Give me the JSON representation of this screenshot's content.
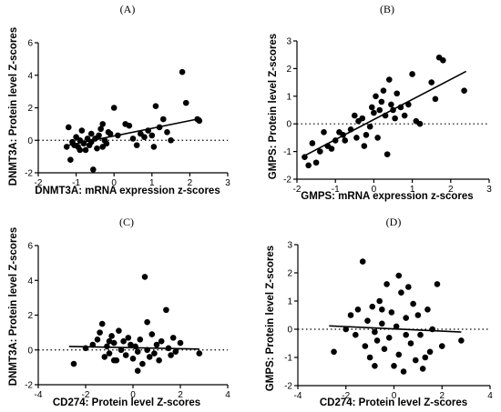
{
  "chart_data": [
    {
      "panel": "(A)",
      "type": "scatter",
      "xlabel": "DNMT3A: mRNA expression z-scores",
      "ylabel": "DNMT3A: Protein level Z-scores",
      "xlim": [
        -2,
        3
      ],
      "ylim": [
        -2,
        6
      ],
      "xticks": [
        -2,
        -1,
        0,
        1,
        2,
        3
      ],
      "yticks": [
        -2,
        0,
        2,
        4,
        6
      ],
      "grid": false,
      "reference_line_y": 0,
      "trend_line": [
        [
          -1.2,
          -0.3
        ],
        [
          2.3,
          1.35
        ]
      ],
      "points": [
        [
          -1.2,
          0.8
        ],
        [
          -1.15,
          -1.2
        ],
        [
          -1.1,
          -0.1
        ],
        [
          -1.05,
          -0.3
        ],
        [
          -1.0,
          0.2
        ],
        [
          -0.95,
          -0.4
        ],
        [
          -0.9,
          0.0
        ],
        [
          -0.85,
          0.6
        ],
        [
          -0.8,
          -0.2
        ],
        [
          -0.75,
          -0.6
        ],
        [
          -0.7,
          0.1
        ],
        [
          -0.65,
          -0.3
        ],
        [
          -0.6,
          0.4
        ],
        [
          -0.55,
          -1.8
        ],
        [
          -0.5,
          0.1
        ],
        [
          -0.45,
          -0.5
        ],
        [
          -0.4,
          0.3
        ],
        [
          -0.35,
          0.7
        ],
        [
          -0.3,
          1.0
        ],
        [
          -0.25,
          0.0
        ],
        [
          -0.2,
          -0.2
        ],
        [
          -0.15,
          0.5
        ],
        [
          -0.1,
          0.4
        ],
        [
          0.0,
          2.0
        ],
        [
          0.1,
          0.3
        ],
        [
          0.3,
          1.0
        ],
        [
          0.4,
          0.9
        ],
        [
          0.5,
          0.1
        ],
        [
          0.6,
          -0.3
        ],
        [
          0.7,
          0.4
        ],
        [
          0.8,
          0.2
        ],
        [
          0.9,
          0.6
        ],
        [
          1.0,
          0.3
        ],
        [
          1.05,
          -0.4
        ],
        [
          1.1,
          2.1
        ],
        [
          1.2,
          0.8
        ],
        [
          1.3,
          1.3
        ],
        [
          1.4,
          0.5
        ],
        [
          1.5,
          0.0
        ],
        [
          1.8,
          4.2
        ],
        [
          1.9,
          2.3
        ],
        [
          2.2,
          1.3
        ],
        [
          2.25,
          1.2
        ],
        [
          -1.25,
          -0.4
        ],
        [
          -0.9,
          -0.6
        ],
        [
          -0.6,
          -0.1
        ],
        [
          -0.3,
          -0.4
        ]
      ]
    },
    {
      "panel": "(B)",
      "type": "scatter",
      "xlabel": "GMPS: mRNA expression z-scores",
      "ylabel": "GMPS: Protein level Z-scores",
      "xlim": [
        -2,
        3
      ],
      "ylim": [
        -2,
        3
      ],
      "xticks": [
        -2,
        -1,
        0,
        1,
        2,
        3
      ],
      "yticks": [
        -2,
        -1,
        0,
        1,
        2,
        3
      ],
      "grid": false,
      "reference_line_y": 0,
      "trend_line": [
        [
          -1.8,
          -1.15
        ],
        [
          2.4,
          1.9
        ]
      ],
      "points": [
        [
          -1.8,
          -1.2
        ],
        [
          -1.7,
          -1.5
        ],
        [
          -1.6,
          -0.7
        ],
        [
          -1.5,
          -1.4
        ],
        [
          -1.4,
          -1.0
        ],
        [
          -1.2,
          -0.8
        ],
        [
          -1.1,
          -0.9
        ],
        [
          -1.0,
          -0.6
        ],
        [
          -0.9,
          -0.3
        ],
        [
          -0.8,
          -0.4
        ],
        [
          -0.75,
          -0.6
        ],
        [
          -0.6,
          -0.2
        ],
        [
          -0.5,
          0.3
        ],
        [
          -0.45,
          -0.5
        ],
        [
          -0.4,
          0.1
        ],
        [
          -0.3,
          0.2
        ],
        [
          -0.2,
          -0.4
        ],
        [
          -0.1,
          -0.1
        ],
        [
          -0.05,
          0.6
        ],
        [
          0.0,
          0.4
        ],
        [
          0.05,
          1.0
        ],
        [
          0.1,
          -0.5
        ],
        [
          0.15,
          0.5
        ],
        [
          0.2,
          0.8
        ],
        [
          0.25,
          1.2
        ],
        [
          0.3,
          0.3
        ],
        [
          0.35,
          -1.1
        ],
        [
          0.4,
          1.6
        ],
        [
          0.45,
          0.7
        ],
        [
          0.5,
          0.5
        ],
        [
          0.55,
          0.2
        ],
        [
          0.6,
          1.1
        ],
        [
          0.7,
          0.6
        ],
        [
          0.8,
          0.3
        ],
        [
          0.9,
          0.7
        ],
        [
          1.0,
          1.8
        ],
        [
          1.1,
          0.1
        ],
        [
          1.2,
          0.0
        ],
        [
          1.5,
          1.5
        ],
        [
          1.6,
          0.9
        ],
        [
          1.7,
          2.4
        ],
        [
          1.8,
          2.3
        ],
        [
          2.35,
          1.2
        ],
        [
          -1.3,
          -0.3
        ],
        [
          -0.25,
          -0.8
        ]
      ]
    },
    {
      "panel": "(C)",
      "type": "scatter",
      "xlabel": "CD274: Protein level Z-scores",
      "ylabel": "DNMT3A: Protein level Z-scores",
      "xlim": [
        -4,
        4
      ],
      "ylim": [
        -2,
        6
      ],
      "xticks": [
        -4,
        -2,
        0,
        2,
        4
      ],
      "yticks": [
        -2,
        0,
        2,
        4,
        6
      ],
      "grid": false,
      "reference_line_y": 0,
      "trend_line": [
        [
          -2.7,
          0.2
        ],
        [
          2.8,
          0.05
        ]
      ],
      "points": [
        [
          -2.5,
          -0.8
        ],
        [
          -2.0,
          0.1
        ],
        [
          -1.7,
          0.3
        ],
        [
          -1.5,
          0.6
        ],
        [
          -1.4,
          1.0
        ],
        [
          -1.3,
          1.5
        ],
        [
          -1.2,
          -0.4
        ],
        [
          -1.1,
          0.2
        ],
        [
          -1.0,
          -0.2
        ],
        [
          -0.9,
          0.8
        ],
        [
          -0.8,
          0.4
        ],
        [
          -0.7,
          -0.6
        ],
        [
          -0.6,
          1.1
        ],
        [
          -0.5,
          0.0
        ],
        [
          -0.4,
          0.5
        ],
        [
          -0.3,
          -0.3
        ],
        [
          -0.2,
          0.7
        ],
        [
          -0.1,
          0.3
        ],
        [
          0.0,
          -0.5
        ],
        [
          0.1,
          0.2
        ],
        [
          0.2,
          -0.1
        ],
        [
          0.3,
          0.6
        ],
        [
          0.4,
          -0.8
        ],
        [
          0.5,
          4.2
        ],
        [
          0.6,
          1.6
        ],
        [
          0.7,
          -0.4
        ],
        [
          0.8,
          0.9
        ],
        [
          0.9,
          -0.2
        ],
        [
          1.0,
          0.3
        ],
        [
          1.1,
          -0.6
        ],
        [
          1.2,
          0.5
        ],
        [
          1.4,
          2.3
        ],
        [
          1.5,
          0.1
        ],
        [
          1.6,
          -0.3
        ],
        [
          1.7,
          0.7
        ],
        [
          1.8,
          -0.1
        ],
        [
          2.0,
          0.4
        ],
        [
          2.8,
          -0.2
        ],
        [
          -0.8,
          -0.6
        ],
        [
          0.2,
          -1.2
        ],
        [
          -1.0,
          0.5
        ],
        [
          0.6,
          0.0
        ]
      ]
    },
    {
      "panel": "(D)",
      "type": "scatter",
      "xlabel": "CD274: Protein level Z-scores",
      "ylabel": "GMPS: Protein level Z-scores",
      "xlim": [
        -4,
        4
      ],
      "ylim": [
        -2,
        3
      ],
      "xticks": [
        -4,
        -2,
        0,
        2,
        4
      ],
      "yticks": [
        -2,
        -1,
        0,
        1,
        2,
        3
      ],
      "grid": false,
      "reference_line_y": 0,
      "trend_line": [
        [
          -2.7,
          0.12
        ],
        [
          2.8,
          -0.1
        ]
      ],
      "points": [
        [
          -2.5,
          -0.8
        ],
        [
          -2.0,
          0.0
        ],
        [
          -1.8,
          0.5
        ],
        [
          -1.6,
          -0.2
        ],
        [
          -1.5,
          0.7
        ],
        [
          -1.3,
          2.4
        ],
        [
          -1.2,
          -0.6
        ],
        [
          -1.1,
          0.3
        ],
        [
          -1.0,
          -1.0
        ],
        [
          -0.9,
          0.8
        ],
        [
          -0.8,
          -0.1
        ],
        [
          -0.7,
          -0.4
        ],
        [
          -0.6,
          1.0
        ],
        [
          -0.5,
          0.2
        ],
        [
          -0.4,
          -0.7
        ],
        [
          -0.3,
          1.6
        ],
        [
          -0.2,
          -0.3
        ],
        [
          -0.1,
          0.6
        ],
        [
          0.0,
          -1.3
        ],
        [
          0.1,
          0.1
        ],
        [
          0.2,
          -0.9
        ],
        [
          0.3,
          1.3
        ],
        [
          0.4,
          -1.5
        ],
        [
          0.5,
          0.4
        ],
        [
          0.6,
          1.5
        ],
        [
          0.7,
          -0.5
        ],
        [
          0.8,
          0.9
        ],
        [
          0.9,
          -1.1
        ],
        [
          1.0,
          0.5
        ],
        [
          1.1,
          -0.2
        ],
        [
          1.2,
          -1.4
        ],
        [
          1.4,
          0.7
        ],
        [
          1.5,
          -0.8
        ],
        [
          1.6,
          0.0
        ],
        [
          1.8,
          1.6
        ],
        [
          2.0,
          -0.6
        ],
        [
          2.8,
          -0.4
        ],
        [
          -0.8,
          -1.3
        ],
        [
          0.2,
          1.9
        ],
        [
          -0.5,
          0.7
        ],
        [
          1.3,
          -1.0
        ],
        [
          0.5,
          -0.2
        ]
      ]
    }
  ]
}
